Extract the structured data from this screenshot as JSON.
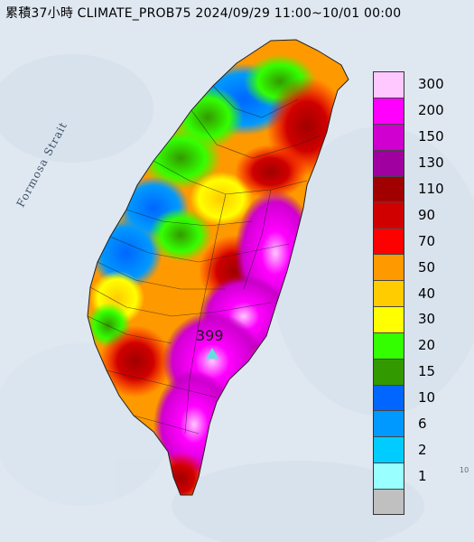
{
  "title": "累積37小時 CLIMATE_PROB75 2024/09/29 11:00~10/01 00:00",
  "map_labels": {
    "strait": "Formosa Strait",
    "edge_label": "10"
  },
  "peak": {
    "value": "399"
  },
  "legend": {
    "entries": [
      {
        "label": "300",
        "color": "#ffc8ff"
      },
      {
        "label": "200",
        "color": "#ff00ff"
      },
      {
        "label": "150",
        "color": "#d000d0"
      },
      {
        "label": "130",
        "color": "#a000a0"
      },
      {
        "label": "110",
        "color": "#a00000"
      },
      {
        "label": "90",
        "color": "#d00000"
      },
      {
        "label": "70",
        "color": "#ff0000"
      },
      {
        "label": "50",
        "color": "#ff9900"
      },
      {
        "label": "40",
        "color": "#ffcc00"
      },
      {
        "label": "30",
        "color": "#ffff00"
      },
      {
        "label": "20",
        "color": "#33ff00"
      },
      {
        "label": "15",
        "color": "#339900"
      },
      {
        "label": "10",
        "color": "#0066ff"
      },
      {
        "label": "6",
        "color": "#0099ff"
      },
      {
        "label": "2",
        "color": "#00ccff"
      },
      {
        "label": "1",
        "color": "#99ffff"
      },
      {
        "label": "",
        "color": "#c0c0c0"
      }
    ]
  },
  "colors": {
    "sea": "#dfe8f1",
    "land_base": "#ff9900"
  }
}
